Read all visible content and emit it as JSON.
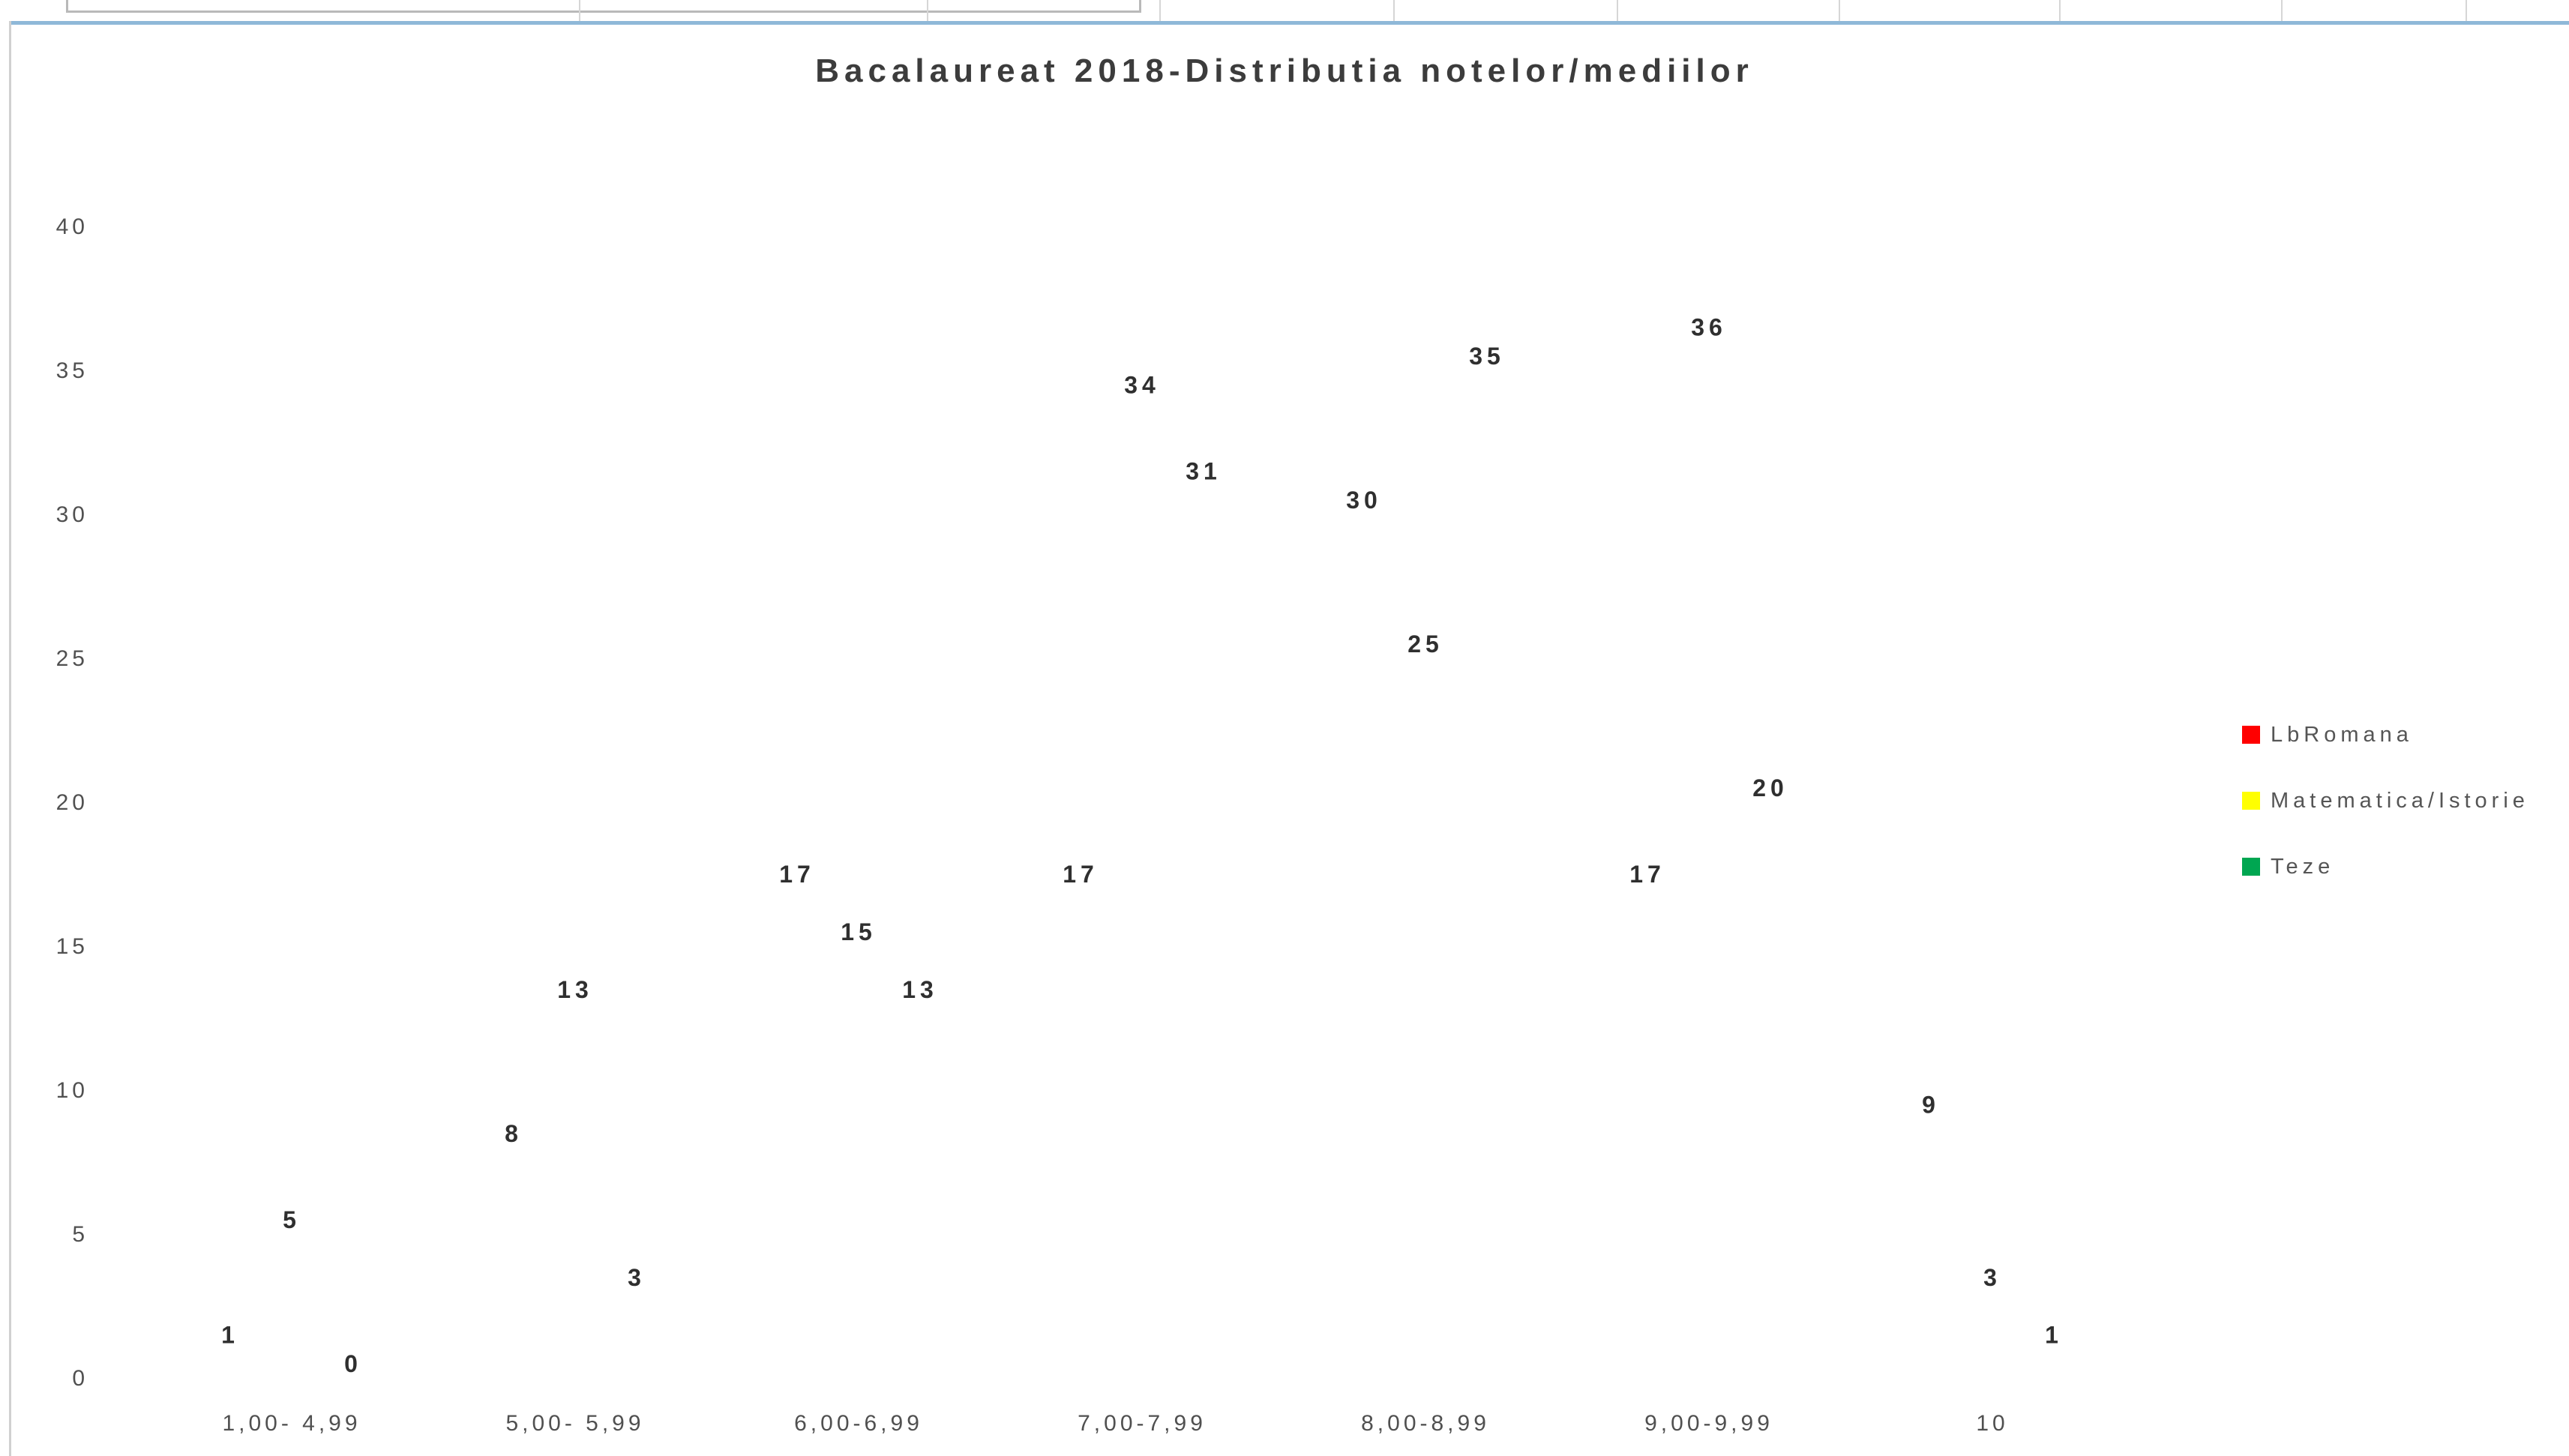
{
  "chart_data": {
    "type": "scatter",
    "title": "Bacalaureat 2018-Distributia notelor/mediilor",
    "xlabel": "",
    "ylabel": "",
    "categories": [
      "1,00- 4,99",
      "5,00- 5,99",
      "6,00-6,99",
      "7,00-7,99",
      "8,00-8,99",
      "9,00-9,99",
      "10"
    ],
    "ylim": [
      0,
      40
    ],
    "yticks": [
      "0",
      "5",
      "10",
      "15",
      "20",
      "25",
      "30",
      "35",
      "40"
    ],
    "grid": false,
    "legend_position": "right",
    "series": [
      {
        "name": "LbRomana",
        "color": "#ff0000",
        "values": [
          5,
          13,
          15,
          34,
          25,
          36,
          3
        ]
      },
      {
        "name": "Matematica/Istorie",
        "color": "#ffff00",
        "values": [
          1,
          8,
          17,
          17,
          30,
          17,
          9
        ]
      },
      {
        "name": "Teze",
        "color": "#00a651",
        "values": [
          0,
          3,
          13,
          31,
          35,
          20,
          1
        ]
      }
    ]
  }
}
